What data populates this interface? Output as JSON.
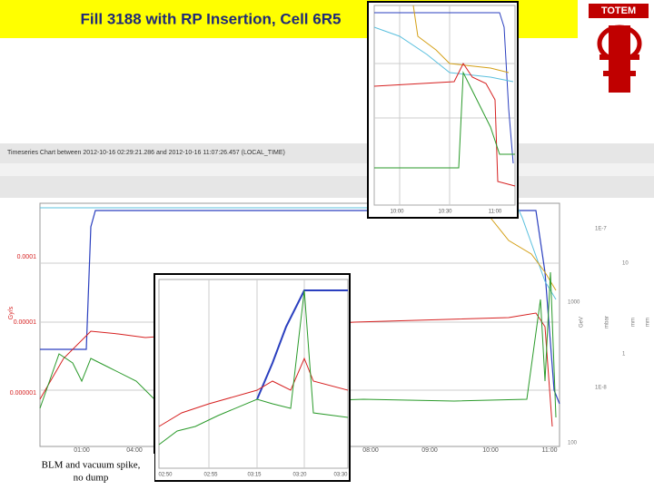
{
  "title": "Fill 3188 with RP Insertion, Cell 6R5",
  "logo": "TOTEM",
  "caption": [
    "BLM and vacuum spike,",
    "no dump"
  ],
  "main_chart": {
    "header": "Timeseries Chart between 2012-10-16 02:29:21.286 and 2012-10-16 11:07:26.457 (LOCAL_TIME)",
    "y_label": "Gy/s",
    "y_ticks": [
      "0.0001",
      "0.00001",
      "0.000001"
    ],
    "x_ticks": [
      "01:00",
      "04:00",
      "08:00",
      "09:00",
      "10:00",
      "11:00"
    ],
    "right_ticks": [
      "1E-7",
      "1E-8",
      "1000",
      "100",
      "10",
      "1"
    ],
    "right_labels": [
      "GeV",
      "mbar",
      "mm",
      "mm"
    ]
  },
  "inset_top": {
    "x_ticks": [
      "10:00",
      "10:30",
      "11:00"
    ]
  },
  "inset_bottom": {
    "x_ticks": [
      "02:50",
      "02:55",
      "03:15",
      "03:20",
      "03:30"
    ]
  }
}
